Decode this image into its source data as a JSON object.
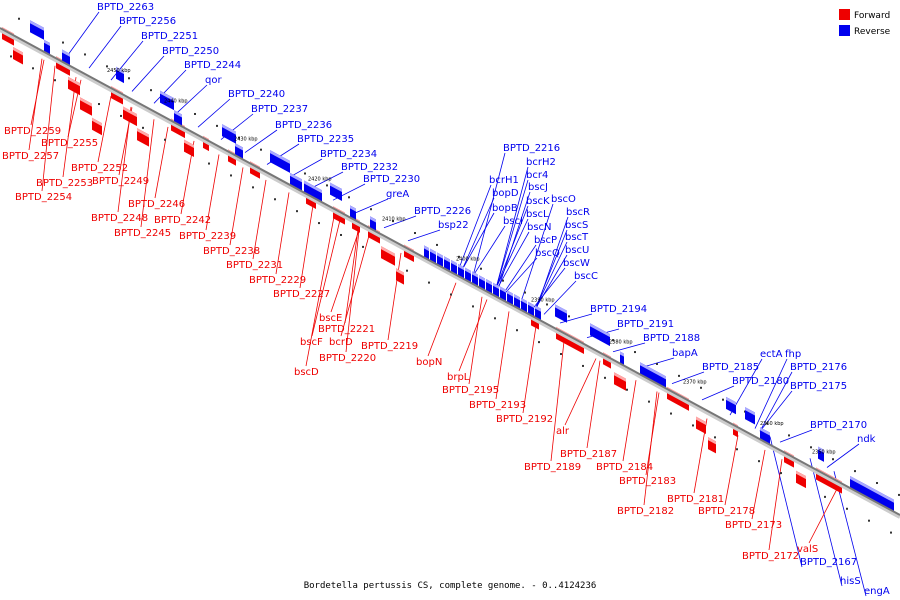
{
  "caption": "Bordetella pertussis CS, complete genome. - 0..4124236",
  "legend": [
    {
      "label": "Forward",
      "color": "#ee0000"
    },
    {
      "label": "Reverse",
      "color": "#0000ee"
    }
  ],
  "colors": {
    "forward": "#ee0000",
    "reverse": "#0000ee",
    "backbone": "#888888"
  },
  "ticks": [
    "2450 kbp",
    "2440 kbp",
    "2430 kbp",
    "2420 kbp",
    "2410 kbp",
    "2400 kbp",
    "2390 kbp",
    "2380 kbp",
    "2370 kbp",
    "2360 kbp",
    "2350 kbp"
  ],
  "reverse_labels": [
    "BPTD_2263",
    "BPTD_2256",
    "BPTD_2251",
    "BPTD_2250",
    "BPTD_2244",
    "qor",
    "BPTD_2240",
    "BPTD_2237",
    "BPTD_2236",
    "BPTD_2235",
    "BPTD_2234",
    "BPTD_2232",
    "BPTD_2230",
    "greA",
    "BPTD_2226",
    "bsp22",
    "BPTD_2216",
    "bcrH2",
    "bcrH1",
    "bcr4",
    "bopD",
    "bscJ",
    "bopB",
    "bscK",
    "bscO",
    "bscI",
    "bscL",
    "bscR",
    "bscN",
    "bscS",
    "bscP",
    "bscT",
    "bscQ",
    "bscU",
    "bscW",
    "bscC",
    "BPTD_2194",
    "BPTD_2191",
    "BPTD_2188",
    "bapA",
    "ectA",
    "fhp",
    "BPTD_2185",
    "BPTD_2180",
    "BPTD_2176",
    "BPTD_2175",
    "BPTD_2170",
    "ndk",
    "BPTD_2167",
    "hisS",
    "engA"
  ],
  "forward_labels": [
    "BPTD_2259",
    "BPTD_2255",
    "BPTD_2257",
    "BPTD_2252",
    "BPTD_2253",
    "BPTD_2249",
    "BPTD_2254",
    "BPTD_2246",
    "BPTD_2248",
    "BPTD_2242",
    "BPTD_2245",
    "BPTD_2239",
    "BPTD_2238",
    "BPTD_2231",
    "BPTD_2229",
    "BPTD_2227",
    "bscE",
    "BPTD_2221",
    "bscF",
    "bcrD",
    "BPTD_2219",
    "BPTD_2220",
    "bscD",
    "bopN",
    "brpL",
    "BPTD_2195",
    "BPTD_2193",
    "BPTD_2192",
    "alr",
    "BPTD_2187",
    "BPTD_2189",
    "BPTD_2184",
    "BPTD_2183",
    "BPTD_2181",
    "BPTD_2182",
    "BPTD_2178",
    "BPTD_2173",
    "valS",
    "BPTD_2172"
  ]
}
